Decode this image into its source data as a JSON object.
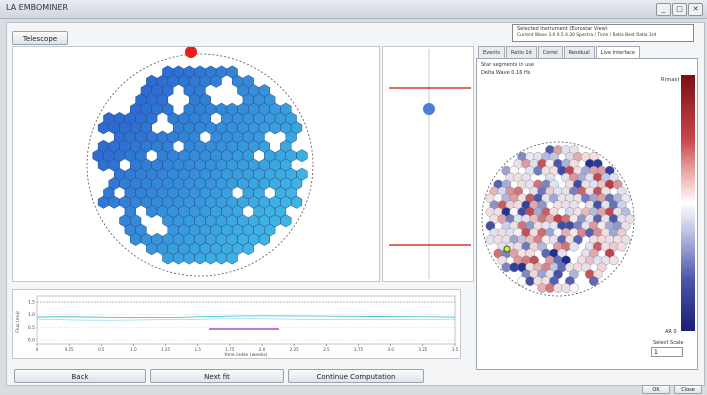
{
  "window": {
    "title": "LA EMBOMINER",
    "controls": [
      "_",
      "□",
      "✕"
    ]
  },
  "toolbar": {
    "main_button": "Telescope"
  },
  "legend_box": {
    "line1": "Selected Instrument (Eurostar View)",
    "line2": "Current Wave 3.0 0.5 4.30 Spectra / Time / Ratio Best Ratio 3rd"
  },
  "right_panel": {
    "tabs": [
      "Events",
      "Ratio 1d",
      "Correl",
      "Residual",
      "Live Interface"
    ],
    "active_tab": 4,
    "info_line1": "Star segments in use",
    "info_line2": "Delta Wave 0.16 Hs",
    "colorbar_top": "R(max)",
    "colorbar_bottom": "AR 0",
    "select_scale_label": "Select Scale",
    "select_scale_value": "1"
  },
  "bottom_plot": {
    "ylabel": "Flux (mu)",
    "xlabel": "time index (weeks)",
    "yticks": [
      "1.5",
      "1.0",
      "0.5",
      "0.0"
    ],
    "xticks": [
      "0",
      "0.25",
      "0.5",
      "1.0",
      "1.25",
      "1.5",
      "1.75",
      "2.0",
      "2.25",
      "2.5",
      "2.75",
      "3.0",
      "3.25",
      "3.5"
    ]
  },
  "bottom_buttons": [
    "Back",
    "Next fit",
    "Continue Computation"
  ],
  "footer_buttons": [
    "OK",
    "Close"
  ],
  "colors": {
    "marker": "#e8201c",
    "bluedot": "#4a7fd6",
    "hline": "#d23a2e",
    "hex_dark": "#2d6bd0",
    "hex_light": "#3fb3e3",
    "plot_purple": "#a64dc8",
    "plot_cyan": "#2bb7c9"
  }
}
